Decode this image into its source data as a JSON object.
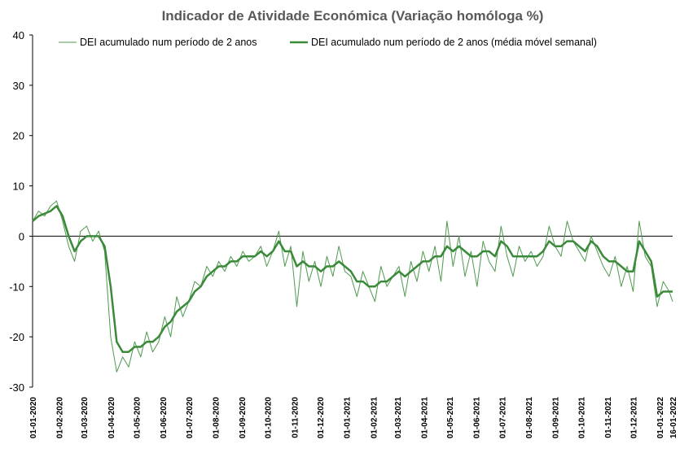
{
  "chart_data": {
    "type": "line",
    "title": "Indicador de Atividade Económica (Variação homóloga %)",
    "xlabel": "",
    "ylabel": "",
    "ylim": [
      -30,
      40
    ],
    "yticks": [
      -30,
      -20,
      -10,
      0,
      10,
      20,
      30,
      40
    ],
    "xticks": [
      "01-01-2020",
      "01-02-2020",
      "01-03-2020",
      "01-04-2020",
      "01-05-2020",
      "01-06-2020",
      "01-07-2020",
      "01-08-2020",
      "01-09-2020",
      "01-10-2020",
      "01-11-2020",
      "01-12-2020",
      "01-01-2021",
      "01-02-2021",
      "01-03-2021",
      "01-04-2021",
      "01-05-2021",
      "01-06-2021",
      "01-07-2021",
      "01-08-2021",
      "01-09-2021",
      "01-10-2021",
      "01-11-2021",
      "01-12-2021",
      "01-01-2022",
      "16-01-2022"
    ],
    "legend_position": "top",
    "grid": false,
    "series": [
      {
        "name": "DEI acumulado num período de 2 anos",
        "color": "#4e9a4e",
        "style": "thin",
        "x": [
          "2020-01-01",
          "2020-01-08",
          "2020-01-15",
          "2020-01-22",
          "2020-01-29",
          "2020-02-05",
          "2020-02-12",
          "2020-02-19",
          "2020-02-26",
          "2020-03-04",
          "2020-03-11",
          "2020-03-18",
          "2020-03-25",
          "2020-04-01",
          "2020-04-08",
          "2020-04-15",
          "2020-04-22",
          "2020-04-29",
          "2020-05-06",
          "2020-05-13",
          "2020-05-20",
          "2020-05-27",
          "2020-06-03",
          "2020-06-10",
          "2020-06-17",
          "2020-06-24",
          "2020-07-01",
          "2020-07-08",
          "2020-07-15",
          "2020-07-22",
          "2020-07-29",
          "2020-08-05",
          "2020-08-12",
          "2020-08-19",
          "2020-08-26",
          "2020-09-02",
          "2020-09-09",
          "2020-09-16",
          "2020-09-23",
          "2020-09-30",
          "2020-10-07",
          "2020-10-14",
          "2020-10-21",
          "2020-10-28",
          "2020-11-04",
          "2020-11-11",
          "2020-11-18",
          "2020-11-25",
          "2020-12-02",
          "2020-12-09",
          "2020-12-16",
          "2020-12-23",
          "2020-12-30",
          "2021-01-06",
          "2021-01-13",
          "2021-01-20",
          "2021-01-27",
          "2021-02-03",
          "2021-02-10",
          "2021-02-17",
          "2021-02-24",
          "2021-03-03",
          "2021-03-10",
          "2021-03-17",
          "2021-03-24",
          "2021-03-31",
          "2021-04-07",
          "2021-04-14",
          "2021-04-21",
          "2021-04-28",
          "2021-05-05",
          "2021-05-12",
          "2021-05-19",
          "2021-05-26",
          "2021-06-02",
          "2021-06-09",
          "2021-06-16",
          "2021-06-23",
          "2021-06-30",
          "2021-07-07",
          "2021-07-14",
          "2021-07-21",
          "2021-07-28",
          "2021-08-04",
          "2021-08-11",
          "2021-08-18",
          "2021-08-25",
          "2021-09-01",
          "2021-09-08",
          "2021-09-15",
          "2021-09-22",
          "2021-09-29",
          "2021-10-06",
          "2021-10-13",
          "2021-10-20",
          "2021-10-27",
          "2021-11-03",
          "2021-11-10",
          "2021-11-17",
          "2021-11-24",
          "2021-12-01",
          "2021-12-08",
          "2021-12-15",
          "2021-12-22",
          "2021-12-29",
          "2022-01-05",
          "2022-01-12",
          "2022-01-16"
        ],
        "values": [
          3,
          5,
          4,
          6,
          7,
          3,
          -2,
          -5,
          1,
          2,
          -1,
          1,
          -3,
          -20,
          -27,
          -24,
          -26,
          -21,
          -24,
          -19,
          -23,
          -21,
          -16,
          -20,
          -12,
          -16,
          -13,
          -9,
          -10,
          -6,
          -8,
          -5,
          -7,
          -4,
          -6,
          -3,
          -5,
          -4,
          -2,
          -6,
          -3,
          1,
          -6,
          -2,
          -14,
          -3,
          -9,
          -5,
          -10,
          -4,
          -8,
          -2,
          -7,
          -8,
          -12,
          -7,
          -10,
          -13,
          -6,
          -10,
          -8,
          -6,
          -12,
          -5,
          -9,
          -3,
          -7,
          -2,
          -9,
          3,
          -6,
          0,
          -8,
          -3,
          -10,
          -1,
          -5,
          -7,
          2,
          -4,
          -8,
          -2,
          -5,
          -3,
          -6,
          -4,
          2,
          -2,
          -4,
          3,
          -1,
          -3,
          -5,
          0,
          -3,
          -6,
          -8,
          -4,
          -10,
          -6,
          -11,
          3,
          -4,
          -6,
          -14,
          -9,
          -11,
          -13
        ]
      },
      {
        "name": "DEI acumulado num período de 2 anos (média móvel semanal)",
        "color": "#3a8a3a",
        "style": "thick",
        "x": [
          "2020-01-01",
          "2020-01-08",
          "2020-01-15",
          "2020-01-22",
          "2020-01-29",
          "2020-02-05",
          "2020-02-12",
          "2020-02-19",
          "2020-02-26",
          "2020-03-04",
          "2020-03-11",
          "2020-03-18",
          "2020-03-25",
          "2020-04-01",
          "2020-04-08",
          "2020-04-15",
          "2020-04-22",
          "2020-04-29",
          "2020-05-06",
          "2020-05-13",
          "2020-05-20",
          "2020-05-27",
          "2020-06-03",
          "2020-06-10",
          "2020-06-17",
          "2020-06-24",
          "2020-07-01",
          "2020-07-08",
          "2020-07-15",
          "2020-07-22",
          "2020-07-29",
          "2020-08-05",
          "2020-08-12",
          "2020-08-19",
          "2020-08-26",
          "2020-09-02",
          "2020-09-09",
          "2020-09-16",
          "2020-09-23",
          "2020-09-30",
          "2020-10-07",
          "2020-10-14",
          "2020-10-21",
          "2020-10-28",
          "2020-11-04",
          "2020-11-11",
          "2020-11-18",
          "2020-11-25",
          "2020-12-02",
          "2020-12-09",
          "2020-12-16",
          "2020-12-23",
          "2020-12-30",
          "2021-01-06",
          "2021-01-13",
          "2021-01-20",
          "2021-01-27",
          "2021-02-03",
          "2021-02-10",
          "2021-02-17",
          "2021-02-24",
          "2021-03-03",
          "2021-03-10",
          "2021-03-17",
          "2021-03-24",
          "2021-03-31",
          "2021-04-07",
          "2021-04-14",
          "2021-04-21",
          "2021-04-28",
          "2021-05-05",
          "2021-05-12",
          "2021-05-19",
          "2021-05-26",
          "2021-06-02",
          "2021-06-09",
          "2021-06-16",
          "2021-06-23",
          "2021-06-30",
          "2021-07-07",
          "2021-07-14",
          "2021-07-21",
          "2021-07-28",
          "2021-08-04",
          "2021-08-11",
          "2021-08-18",
          "2021-08-25",
          "2021-09-01",
          "2021-09-08",
          "2021-09-15",
          "2021-09-22",
          "2021-09-29",
          "2021-10-06",
          "2021-10-13",
          "2021-10-20",
          "2021-10-27",
          "2021-11-03",
          "2021-11-10",
          "2021-11-17",
          "2021-11-24",
          "2021-12-01",
          "2021-12-08",
          "2021-12-15",
          "2021-12-22",
          "2021-12-29",
          "2022-01-05",
          "2022-01-12",
          "2022-01-16"
        ],
        "values": [
          3,
          4,
          4.5,
          5,
          6,
          4,
          0,
          -3,
          -1,
          0,
          0,
          0,
          -2,
          -10,
          -21,
          -23,
          -23,
          -22,
          -22,
          -21,
          -21,
          -20,
          -18,
          -17,
          -15,
          -14,
          -13,
          -11,
          -10,
          -8,
          -7,
          -6,
          -6,
          -5,
          -5,
          -4,
          -4,
          -4,
          -3,
          -4,
          -3,
          -1,
          -3,
          -3,
          -6,
          -5,
          -6,
          -6,
          -7,
          -6,
          -6,
          -5,
          -6,
          -7,
          -9,
          -9,
          -10,
          -10,
          -9,
          -9,
          -8,
          -7,
          -8,
          -7,
          -6,
          -5,
          -5,
          -4,
          -4,
          -2,
          -3,
          -2,
          -3,
          -4,
          -4,
          -3,
          -3,
          -4,
          -1,
          -2,
          -4,
          -4,
          -4,
          -4,
          -4,
          -3,
          -1,
          -2,
          -2,
          -1,
          -1,
          -2,
          -3,
          -1,
          -2,
          -4,
          -5,
          -5,
          -6,
          -7,
          -7,
          -1,
          -3,
          -5,
          -12,
          -11,
          -11,
          -11
        ]
      }
    ]
  }
}
